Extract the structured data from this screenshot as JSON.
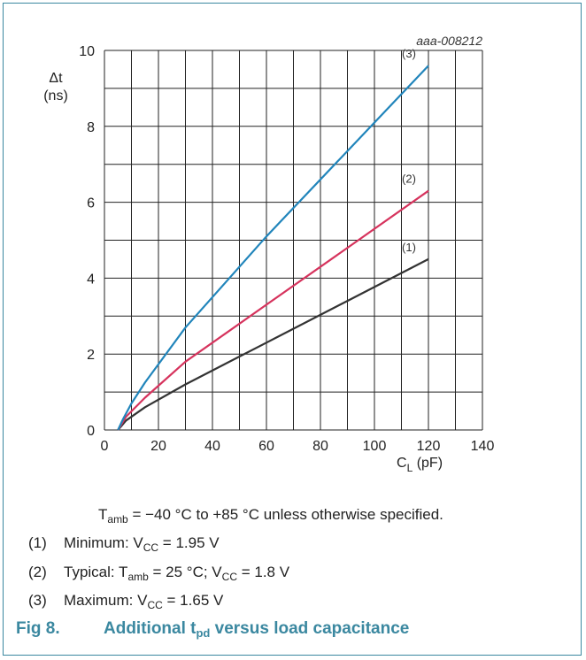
{
  "chart_data": {
    "type": "line",
    "ref_code": "aaa-008212",
    "ylabel_symbol": "Δt",
    "ylabel_unit": "(ns)",
    "xlabel_main": "C",
    "xlabel_sub": "L",
    "xlabel_unit": "(pF)",
    "xlim": [
      0,
      140
    ],
    "ylim": [
      0,
      10
    ],
    "x_ticks": [
      0,
      20,
      40,
      60,
      80,
      100,
      120,
      140
    ],
    "y_ticks": [
      0,
      2,
      4,
      6,
      8,
      10
    ],
    "grid": true,
    "series": [
      {
        "name": "(1)",
        "color": "#333333",
        "points": [
          [
            5,
            0
          ],
          [
            8,
            0.25
          ],
          [
            15,
            0.6
          ],
          [
            30,
            1.2
          ],
          [
            60,
            2.3
          ],
          [
            90,
            3.4
          ],
          [
            120,
            4.5
          ]
        ]
      },
      {
        "name": "(2)",
        "color": "#d6335d",
        "points": [
          [
            5,
            0
          ],
          [
            8,
            0.35
          ],
          [
            15,
            0.85
          ],
          [
            30,
            1.8
          ],
          [
            60,
            3.3
          ],
          [
            90,
            4.8
          ],
          [
            120,
            6.3
          ]
        ]
      },
      {
        "name": "(3)",
        "color": "#2185bb",
        "points": [
          [
            5,
            0
          ],
          [
            7,
            0.3
          ],
          [
            10,
            0.7
          ],
          [
            15,
            1.25
          ],
          [
            30,
            2.7
          ],
          [
            60,
            5.1
          ],
          [
            90,
            7.35
          ],
          [
            120,
            9.6
          ]
        ]
      }
    ]
  },
  "notes": {
    "condition": {
      "t": "T",
      "t_sub": "amb",
      "text": " = −40 °C to +85 °C unless otherwise specified."
    },
    "items": [
      {
        "num": "(1)",
        "pre": "Minimum: V",
        "sub": "CC",
        "post": " = 1.95 V"
      },
      {
        "num": "(2)",
        "pre": "Typical: T",
        "sub1": "amb",
        "mid": " = 25 °C; V",
        "sub2": "CC",
        "post": " = 1.8 V"
      },
      {
        "num": "(3)",
        "pre": "Maximum: V",
        "sub": "CC",
        "post": " = 1.65 V"
      }
    ]
  },
  "caption": {
    "fig": "Fig 8.",
    "pre": "Additional t",
    "sub": "pd",
    "post": " versus load capacitance"
  }
}
